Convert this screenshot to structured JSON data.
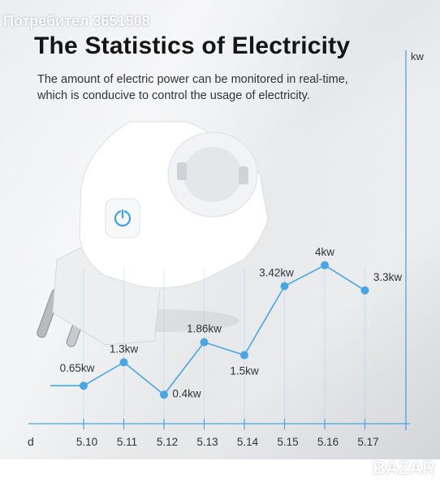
{
  "watermark_top": "Потребител 3651508",
  "watermark_bottom": "BAZAR",
  "header": {
    "title": "The Statistics of Electricity",
    "subtitle_line1": "The amount of electric power can be monitored in real-time,",
    "subtitle_line2": "which is conducive to control the usage of electricity."
  },
  "colors": {
    "line": "#4aa6e2",
    "axis": "#4aa6e2",
    "label": "#333333",
    "plug_body": "#ffffff",
    "button_ring": "#3da0e0"
  },
  "icons": {
    "power_button": "power-icon"
  },
  "chart_data": {
    "type": "line",
    "title": "",
    "xlabel": "d",
    "ylabel": "kw",
    "categories": [
      "5.10",
      "5.11",
      "5.12",
      "5.13",
      "5.14",
      "5.15",
      "5.16",
      "5.17"
    ],
    "values": [
      0.65,
      1.3,
      0.4,
      1.86,
      1.5,
      3.42,
      4,
      3.3
    ],
    "point_labels": [
      "0.65kw",
      "1.3kw",
      "0.4kw",
      "1.86kw",
      "1.5kw",
      "3.42kw",
      "4kw",
      "3.3kw"
    ],
    "grid": true
  }
}
